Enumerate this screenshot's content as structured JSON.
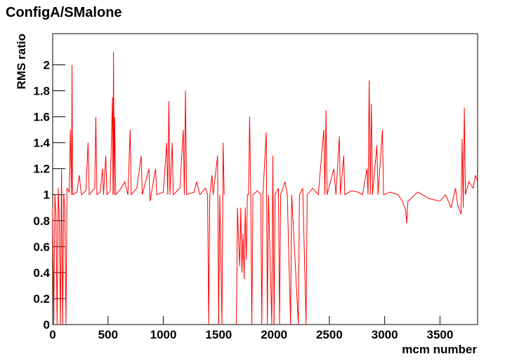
{
  "chart_data": {
    "type": "line",
    "title": "ConfigA/SMalone",
    "x_label": "mcm number",
    "y_label": "RMS ratio",
    "xlim": [
      0,
      3840
    ],
    "ylim": [
      0,
      2.24
    ],
    "xticks": [
      0,
      500,
      1000,
      1500,
      2000,
      2500,
      3000,
      3500
    ],
    "yticks": [
      0,
      0.2,
      0.4,
      0.6,
      0.8,
      1,
      1.2,
      1.4,
      1.6,
      1.8,
      2
    ],
    "series": [
      {
        "name": "RMS ratio",
        "color": "#ff0000",
        "x": [
          0,
          10,
          20,
          30,
          40,
          50,
          60,
          70,
          80,
          90,
          100,
          110,
          120,
          130,
          150,
          160,
          170,
          175,
          180,
          220,
          240,
          260,
          300,
          320,
          330,
          380,
          390,
          400,
          430,
          450,
          460,
          480,
          490,
          520,
          540,
          545,
          550,
          555,
          560,
          570,
          620,
          650,
          680,
          700,
          710,
          760,
          800,
          810,
          870,
          880,
          900,
          930,
          940,
          1000,
          1030,
          1040,
          1050,
          1060,
          1080,
          1090,
          1150,
          1180,
          1190,
          1200,
          1210,
          1280,
          1300,
          1330,
          1380,
          1400,
          1410,
          1420,
          1440,
          1450,
          1490,
          1500,
          1510,
          1530,
          1540,
          1550,
          1560,
          1660,
          1670,
          1680,
          1690,
          1700,
          1710,
          1720,
          1730,
          1740,
          1750,
          1760,
          1770,
          1780,
          1790,
          1800,
          1810,
          1850,
          1880,
          1890,
          1900,
          1930,
          1940,
          1950,
          1980,
          1990,
          2000,
          2010,
          2040,
          2050,
          2060,
          2100,
          2120,
          2150,
          2160,
          2220,
          2230,
          2260,
          2290,
          2300,
          2350,
          2400,
          2450,
          2460,
          2470,
          2480,
          2540,
          2560,
          2590,
          2600,
          2630,
          2640,
          2700,
          2760,
          2800,
          2840,
          2850,
          2860,
          2870,
          2880,
          2890,
          2930,
          2940,
          2980,
          2990,
          3050,
          3120,
          3160,
          3190,
          3200,
          3210,
          3300,
          3400,
          3500,
          3550,
          3600,
          3640,
          3660,
          3690,
          3700,
          3710,
          3720,
          3730,
          3760,
          3800,
          3820,
          3840
        ],
        "values": [
          0.9,
          0,
          1.0,
          0.85,
          0,
          1.05,
          0.8,
          0,
          1.2,
          0,
          1.0,
          0.9,
          0,
          1.05,
          1.02,
          1.5,
          1.0,
          2.0,
          1.0,
          1.02,
          1.15,
          1.0,
          1.03,
          1.4,
          1.0,
          1.05,
          1.6,
          1.0,
          1.02,
          1.2,
          1.0,
          1.3,
          1.0,
          1.03,
          1.75,
          1.0,
          2.1,
          1.0,
          1.6,
          1.0,
          1.05,
          1.1,
          1.0,
          1.5,
          1.0,
          1.05,
          1.3,
          1.0,
          1.2,
          0.95,
          1.05,
          1.2,
          1.0,
          1.02,
          1.4,
          1.0,
          1.72,
          1.0,
          1.4,
          1.0,
          1.05,
          1.5,
          1.0,
          1.8,
          1.0,
          1.02,
          1.1,
          1.0,
          1.05,
          1.0,
          0,
          1.0,
          1.15,
          1.0,
          1.3,
          0,
          1.0,
          0,
          1.4,
          1.0,
          null,
          0,
          0.9,
          0.65,
          0.45,
          0.9,
          0.4,
          0.7,
          0.35,
          0.9,
          0.5,
          1.0,
          1.0,
          1.6,
          1.0,
          0,
          1.0,
          1.03,
          1.0,
          0,
          1.0,
          1.48,
          0,
          1.0,
          0,
          1.3,
          0,
          1.0,
          1.05,
          0,
          1.0,
          1.1,
          1.0,
          0,
          1.0,
          0,
          1.0,
          1.05,
          0,
          1.0,
          1.05,
          1.0,
          1.5,
          1.0,
          1.65,
          1.0,
          1.2,
          1.0,
          1.45,
          1.0,
          1.3,
          1.0,
          1.03,
          1.02,
          1.0,
          1.2,
          1.0,
          1.88,
          1.0,
          1.7,
          1.0,
          1.38,
          1.0,
          1.5,
          1.0,
          1.02,
          1.0,
          0.95,
          0.88,
          0.78,
          0.95,
          1.02,
          0.97,
          0.95,
          1.0,
          0.9,
          1.05,
          0.92,
          0.85,
          1.43,
          0.9,
          1.67,
          1.0,
          1.1,
          1.05,
          1.15,
          1.1
        ]
      }
    ]
  }
}
